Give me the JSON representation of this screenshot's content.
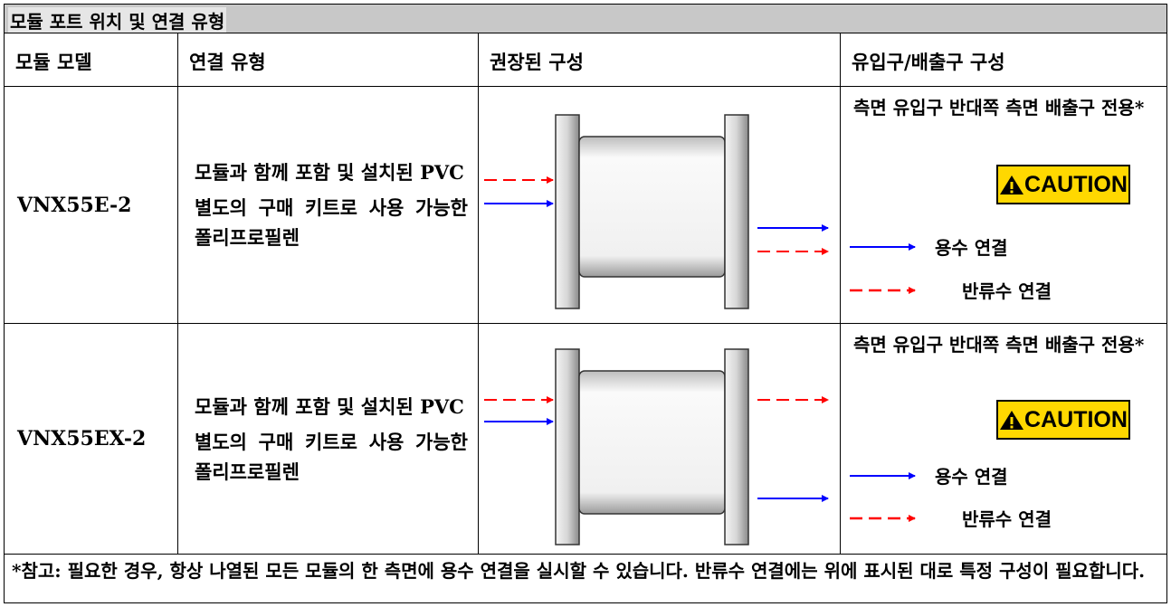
{
  "title": "모듈 포트 위치 및 연결 유형",
  "headers": [
    "모듈 모델",
    "연결 유형",
    "권장된 구성",
    "유입구/배출구 구성"
  ],
  "rows": [
    {
      "model": "VNX55E-2",
      "connection": [
        "모듈과 함께 포함 및 설치된 PVC",
        "별도의 구매 키트로 사용 가능한 폴리프로필렌"
      ],
      "inlet_outlet": "측면 유입구 반대쪽 측면 배출구 전용*",
      "caution": "CAUTION",
      "legend": [
        "용수 연결",
        "반류수 연결"
      ]
    },
    {
      "model": "VNX55EX-2",
      "connection": [
        "모듈과 함께 포함 및 설치된 PVC",
        "별도의 구매 키트로 사용 가능한 폴리프로필렌"
      ],
      "inlet_outlet": "측면 유입구 반대쪽 측면 배출구 전용*",
      "caution": "CAUTION",
      "legend": [
        "용수 연결",
        "반류수 연결"
      ]
    }
  ],
  "footnote": "*참고: 필요한 경우, 항상 나열된 모든 모듈의 한 측면에 용수 연결을 실시할 수 있습니다. 반류수 연결에는 위에 표시된 대로 특정 구성이 필요합니다."
}
